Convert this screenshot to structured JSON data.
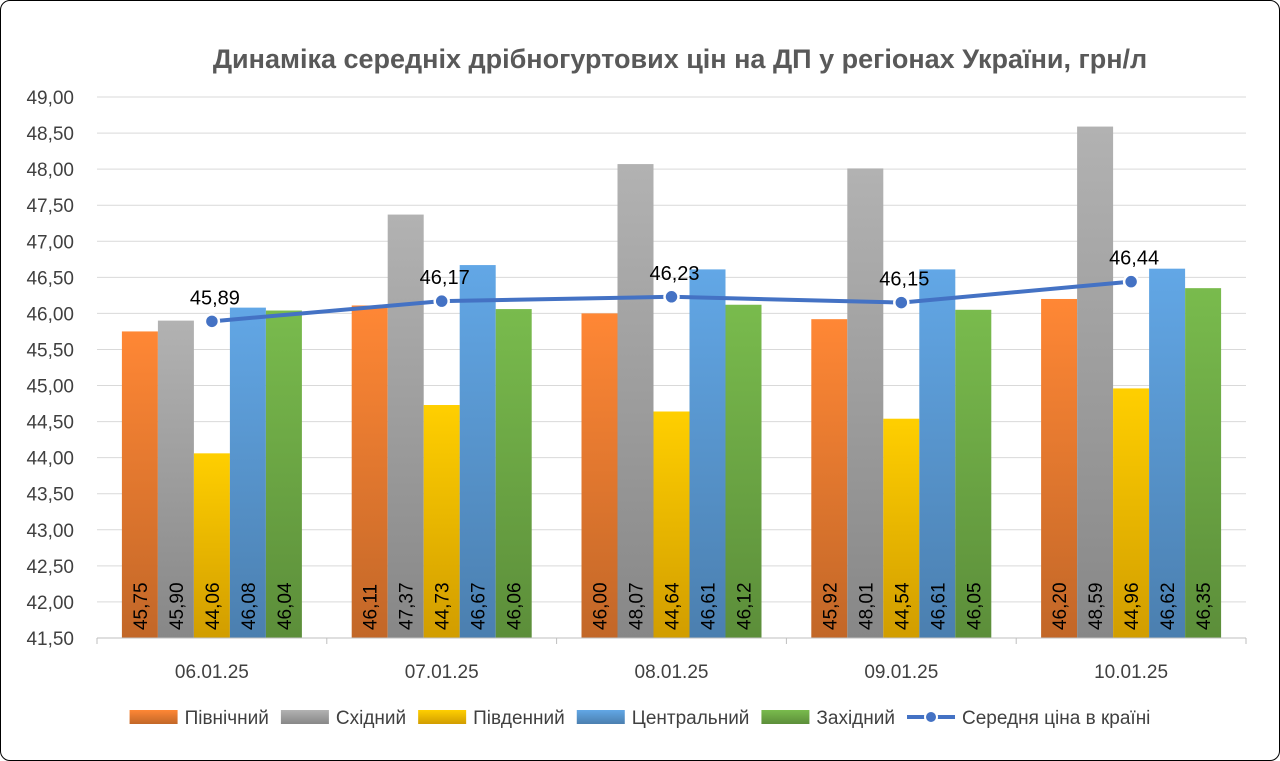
{
  "chart_data": {
    "type": "bar",
    "title": "Динаміка середніх дрібногуртових цін на ДП у регіонах України, грн/л",
    "xlabel": "",
    "ylabel": "",
    "ylim": [
      41.5,
      49.0
    ],
    "ytick_step": 0.5,
    "y_tick_labels": [
      "41,50",
      "42,00",
      "42,50",
      "43,00",
      "43,50",
      "44,00",
      "44,50",
      "45,00",
      "45,50",
      "46,00",
      "46,50",
      "47,00",
      "47,50",
      "48,00",
      "48,50",
      "49,00"
    ],
    "grid": true,
    "legend_position": "bottom",
    "categories": [
      "06.01.25",
      "07.01.25",
      "08.01.25",
      "09.01.25",
      "10.01.25"
    ],
    "series": [
      {
        "name": "Північний",
        "color": "#ED7D31",
        "values": [
          45.75,
          46.11,
          46.0,
          45.92,
          46.2
        ],
        "labels": [
          "45,75",
          "46,11",
          "46,00",
          "45,92",
          "46,20"
        ]
      },
      {
        "name": "Східний",
        "color": "#A5A5A5",
        "values": [
          45.9,
          47.37,
          48.07,
          48.01,
          48.59
        ],
        "labels": [
          "45,90",
          "47,37",
          "48,07",
          "48,01",
          "48,59"
        ]
      },
      {
        "name": "Південний",
        "color": "#FFC000",
        "values": [
          44.06,
          44.73,
          44.64,
          44.54,
          44.96
        ],
        "labels": [
          "44,06",
          "44,73",
          "44,64",
          "44,54",
          "44,96"
        ]
      },
      {
        "name": "Центральний",
        "color": "#5B9BD5",
        "values": [
          46.08,
          46.67,
          46.61,
          46.61,
          46.62
        ],
        "labels": [
          "46,08",
          "46,67",
          "46,61",
          "46,61",
          "46,62"
        ]
      },
      {
        "name": "Західний",
        "color": "#70AD47",
        "values": [
          46.04,
          46.06,
          46.12,
          46.05,
          46.35
        ],
        "labels": [
          "46,04",
          "46,06",
          "46,12",
          "46,05",
          "46,35"
        ]
      }
    ],
    "line_series": {
      "name": "Середня ціна в країні",
      "color": "#4472C4",
      "values": [
        45.89,
        46.17,
        46.23,
        46.15,
        46.44
      ],
      "labels": [
        "45,89",
        "46,17",
        "46,23",
        "46,15",
        "46,44"
      ]
    }
  }
}
